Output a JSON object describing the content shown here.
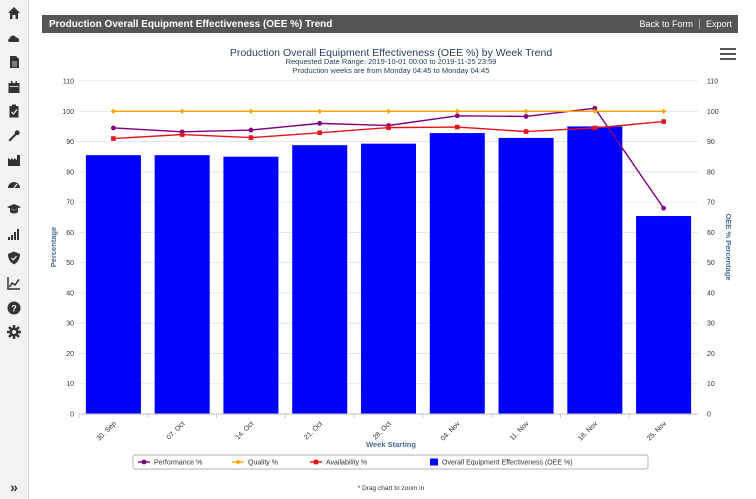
{
  "sidebar": {
    "icons": [
      "home-icon",
      "cloud-icon",
      "document-icon",
      "calendar-icon",
      "clipboard-icon",
      "wrench-icon",
      "factory-icon",
      "dashboard-icon",
      "graduation-icon",
      "bar-signal-icon",
      "shield-check-icon",
      "area-chart-icon",
      "help-icon",
      "gear-icon"
    ],
    "expand_label": "»"
  },
  "header": {
    "title": "Production Overall Equipment Effectiveness (OEE %) Trend",
    "back_label": "Back to Form",
    "export_label": "Export"
  },
  "chart_data": {
    "type": "bar",
    "title": "Production Overall Equipment Effectiveness (OEE %) by Week Trend",
    "subtitle_1": "Requested Date Range: 2019-10-01 00:00 to 2019-11-25 23:59",
    "subtitle_2": "Production weeks are from Monday 04:45 to Monday 04:45",
    "xlabel": "Week Starting",
    "ylabel": "Percentage",
    "ylabel_right": "OEE % Percentage",
    "ylim": [
      0,
      110
    ],
    "yticks": [
      0,
      10,
      20,
      30,
      40,
      50,
      60,
      70,
      80,
      90,
      100,
      110
    ],
    "categories": [
      "30. Sep",
      "07. Oct",
      "14. Oct",
      "21. Oct",
      "28. Oct",
      "04. Nov",
      "11. Nov",
      "18. Nov",
      "25. Nov"
    ],
    "bars": {
      "name": "Overall Equipment Effectiveness (OEE %)",
      "color": "#0000ff",
      "values": [
        85.5,
        85.5,
        85,
        88.8,
        89.3,
        92.8,
        91.2,
        95,
        65.4
      ]
    },
    "series": [
      {
        "name": "Performance %",
        "color": "#800080",
        "marker": "circle",
        "values": [
          94.5,
          93.2,
          93.8,
          96,
          95.3,
          98.5,
          98.3,
          101,
          68
        ]
      },
      {
        "name": "Quality %",
        "color": "#ffa500",
        "marker": "diamond",
        "values": [
          100,
          100,
          100,
          100,
          100,
          100,
          100,
          100,
          100
        ]
      },
      {
        "name": "Availability %",
        "color": "#e8121b",
        "marker": "square",
        "values": [
          91,
          92.3,
          91.3,
          92.9,
          94.6,
          94.8,
          93.3,
          94.5,
          96.6
        ]
      }
    ],
    "legend_position": "bottom",
    "grid": true
  },
  "footer": {
    "hint": "* Drag chart to zoom in"
  }
}
